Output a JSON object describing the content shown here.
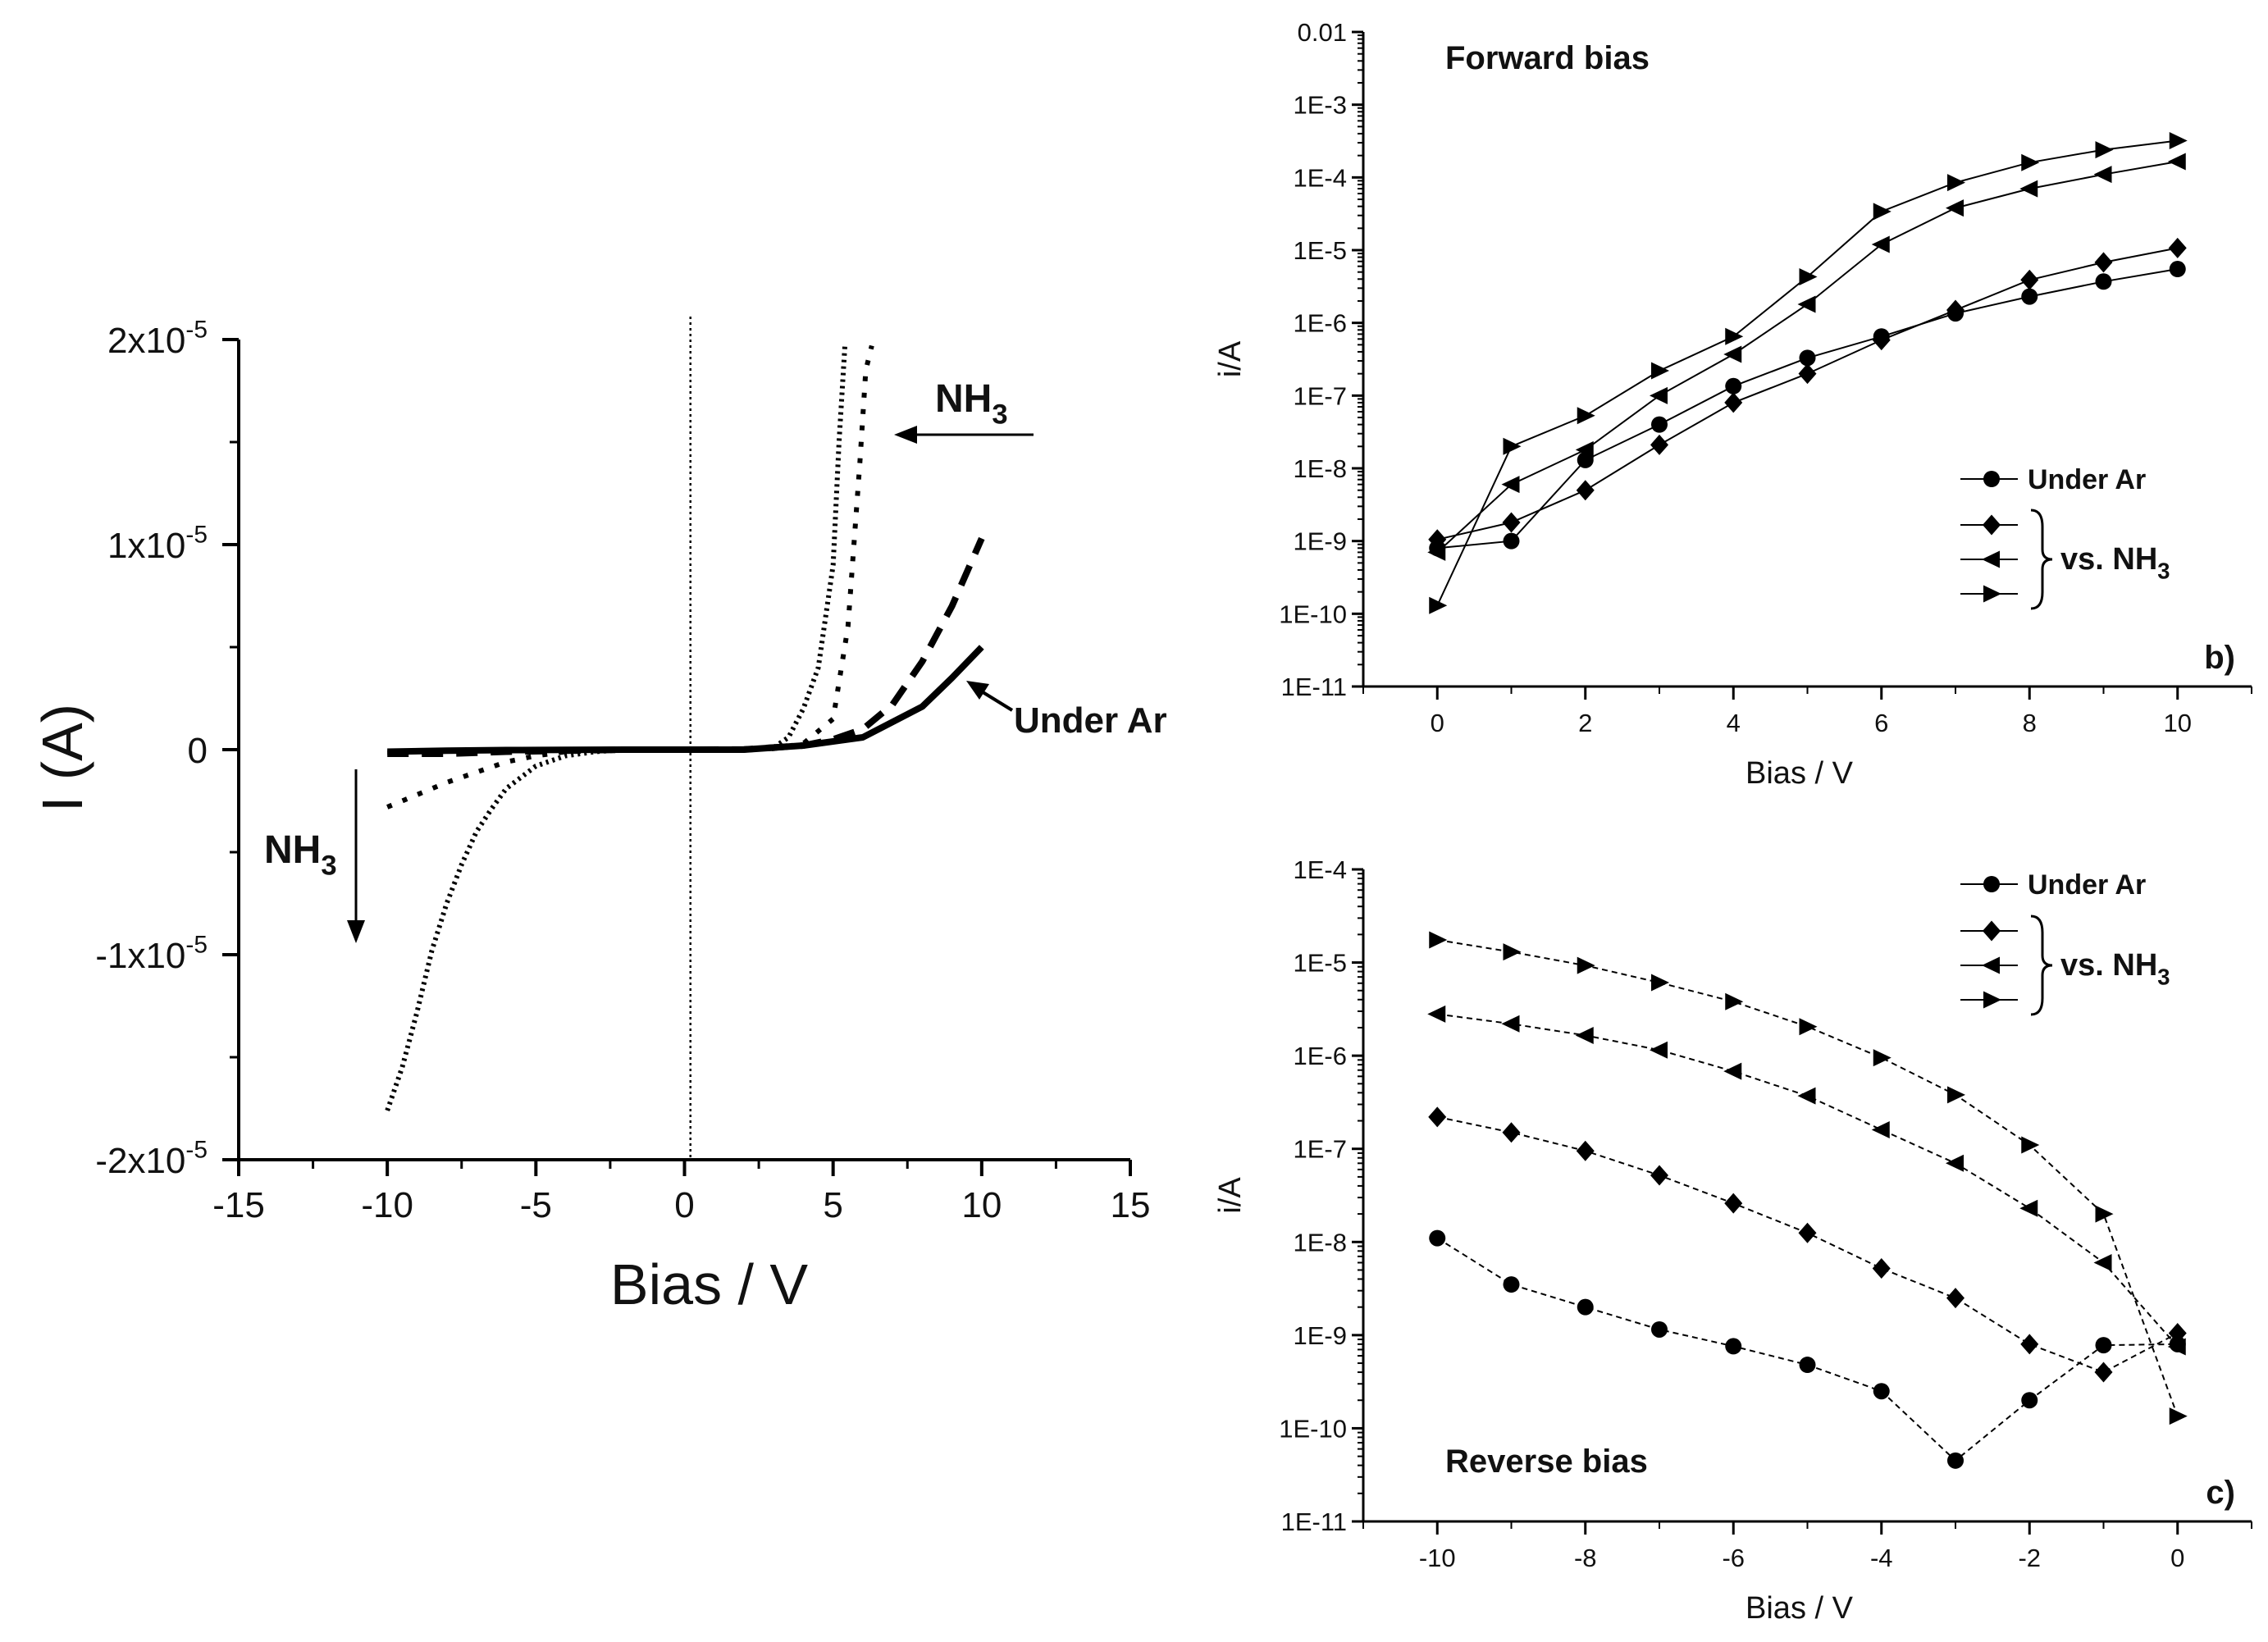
{
  "chart_data": [
    {
      "type": "line",
      "panel": "a",
      "xlabel": "Bias / V",
      "ylabel": "I (A)",
      "xlim": [
        -15,
        15
      ],
      "ylim": [
        -2e-05,
        2e-05
      ],
      "x_ticks": [
        -15,
        -10,
        -5,
        0,
        5,
        10,
        15
      ],
      "x_tick_labels": [
        "-15",
        "-10",
        "-5",
        "0",
        "5",
        "10",
        "15"
      ],
      "y_ticks": [
        {
          "value": 2e-05,
          "mant": "2x10",
          "exp": "-5"
        },
        {
          "value": 1e-05,
          "mant": "1x10",
          "exp": "-5"
        },
        {
          "value": 0,
          "mant": "0",
          "exp": ""
        },
        {
          "value": -1e-05,
          "mant": "-1x10",
          "exp": "-5"
        },
        {
          "value": -2e-05,
          "mant": "-2x10",
          "exp": "-5"
        }
      ],
      "zero_line_x": 0.2,
      "series": [
        {
          "name": "Under Ar",
          "style": "solid",
          "x": [
            -10,
            -8,
            -6,
            -4,
            -2,
            0,
            2,
            4,
            6,
            8,
            9,
            10
          ],
          "y": [
            -1e-07,
            -5e-08,
            -2e-08,
            -1e-08,
            0,
            0,
            0,
            2e-07,
            6e-07,
            2.1e-06,
            3.5e-06,
            5e-06
          ]
        },
        {
          "name": "NH3 dashed",
          "style": "dash-thick",
          "x": [
            -10,
            -8,
            -6,
            -4,
            -2,
            0,
            2,
            4,
            5,
            6,
            7,
            8,
            9,
            10
          ],
          "y": [
            -2e-07,
            -2e-07,
            -1e-07,
            -5e-08,
            0,
            0,
            1e-08,
            2e-07,
            5e-07,
            1e-06,
            2.2e-06,
            4.3e-06,
            7e-06,
            1.03e-05
          ]
        },
        {
          "name": "NH3 dotted small",
          "style": "dot-medium",
          "x": [
            -10,
            -9,
            -8,
            -7,
            -6,
            -5,
            -4,
            -3,
            -2,
            -1,
            0,
            2,
            3,
            4,
            5,
            5.5,
            5.9,
            6.1,
            6.3
          ],
          "y": [
            -2.8e-06,
            -2.2e-06,
            -1.6e-06,
            -1.1e-06,
            -6e-07,
            -3e-07,
            -1e-07,
            -5e-08,
            0,
            0,
            0,
            0,
            5e-08,
            3e-07,
            1.5e-06,
            6e-06,
            1.4e-05,
            1.85e-05,
            1.97e-05
          ]
        },
        {
          "name": "NH3 dotted large",
          "style": "dot-fine",
          "x": [
            -10,
            -9.5,
            -9,
            -8.5,
            -8,
            -7.5,
            -7,
            -6.5,
            -6,
            -5,
            -4,
            -3,
            -2,
            0,
            2,
            3,
            3.5,
            4,
            4.5,
            5,
            5.2,
            5.4
          ],
          "y": [
            -1.76e-05,
            -1.55e-05,
            -1.28e-05,
            -9.8e-06,
            -7.5e-06,
            -5.6e-06,
            -4e-06,
            -2.9e-06,
            -1.9e-06,
            -8e-07,
            -3e-07,
            -1e-07,
            0,
            0,
            0,
            1e-07,
            6e-07,
            2e-06,
            4e-06,
            9e-06,
            1.5e-05,
            1.98e-05
          ]
        }
      ],
      "annotations": {
        "nh3_top": {
          "main": "NH",
          "sub": "3"
        },
        "nh3_left": {
          "main": "NH",
          "sub": "3"
        },
        "under_ar": "Under Ar"
      }
    },
    {
      "type": "line",
      "panel": "b",
      "panel_label": "b)",
      "title": "Forward bias",
      "xlabel": "Bias / V",
      "ylabel": "i/A",
      "xlim": [
        -1,
        11
      ],
      "ylim_log10": [
        -11,
        -2
      ],
      "x_ticks": [
        0,
        2,
        4,
        6,
        8,
        10
      ],
      "x_tick_labels": [
        "0",
        "2",
        "4",
        "6",
        "8",
        "10"
      ],
      "y_tick_labels": [
        "0.01",
        "1E-3",
        "1E-4",
        "1E-5",
        "1E-6",
        "1E-7",
        "1E-8",
        "1E-9",
        "1E-10",
        "1E-11"
      ],
      "y_tick_values_log10": [
        -2,
        -3,
        -4,
        -5,
        -6,
        -7,
        -8,
        -9,
        -10,
        -11
      ],
      "series": [
        {
          "name": "Under Ar",
          "marker": "circle",
          "x": [
            0,
            1,
            2,
            3,
            4,
            5,
            6,
            7,
            8,
            9,
            10
          ],
          "y": [
            8e-10,
            1e-09,
            1.3e-08,
            4e-08,
            1.35e-07,
            3.3e-07,
            6.5e-07,
            1.35e-06,
            2.3e-06,
            3.7e-06,
            5.5e-06
          ]
        },
        {
          "name": "NH3 diamond",
          "marker": "diamond",
          "x": [
            0,
            1,
            2,
            3,
            4,
            5,
            6,
            7,
            8,
            9,
            10
          ],
          "y": [
            1.05e-09,
            1.8e-09,
            5e-09,
            2.1e-08,
            8e-08,
            2e-07,
            5.8e-07,
            1.5e-06,
            3.9e-06,
            6.8e-06,
            1.07e-05
          ]
        },
        {
          "name": "NH3 left triangle",
          "marker": "triangle-left",
          "x": [
            0,
            1,
            2,
            3,
            4,
            5,
            6,
            7,
            8,
            9,
            10
          ],
          "y": [
            7e-10,
            6e-09,
            1.8e-08,
            1e-07,
            3.7e-07,
            1.8e-06,
            1.2e-05,
            3.8e-05,
            7e-05,
            0.00011,
            0.000165
          ]
        },
        {
          "name": "NH3 right triangle",
          "marker": "triangle-right",
          "x": [
            0,
            1,
            2,
            3,
            4,
            5,
            6,
            7,
            8,
            9,
            10
          ],
          "y": [
            1.3e-10,
            2e-08,
            5.3e-08,
            2.2e-07,
            6.5e-07,
            4.3e-06,
            3.4e-05,
            8.5e-05,
            0.00016,
            0.00024,
            0.00032
          ]
        }
      ],
      "legend": {
        "under_ar": "Under Ar",
        "vs_nh3": {
          "main": "vs. NH",
          "sub": "3"
        }
      }
    },
    {
      "type": "line",
      "panel": "c",
      "panel_label": "c)",
      "title": "Reverse bias",
      "xlabel": "Bias / V",
      "ylabel": "i/A",
      "xlim": [
        -11,
        1
      ],
      "ylim_log10": [
        -11,
        -4
      ],
      "x_ticks": [
        -10,
        -8,
        -6,
        -4,
        -2,
        0
      ],
      "x_tick_labels": [
        "-10",
        "-8",
        "-6",
        "-4",
        "-2",
        "0"
      ],
      "y_tick_labels": [
        "1E-4",
        "1E-5",
        "1E-6",
        "1E-7",
        "1E-8",
        "1E-9",
        "1E-10",
        "1E-11"
      ],
      "y_tick_values_log10": [
        -4,
        -5,
        -6,
        -7,
        -8,
        -9,
        -10,
        -11
      ],
      "series": [
        {
          "name": "Under Ar",
          "marker": "circle",
          "x": [
            -10,
            -9,
            -8,
            -7,
            -6,
            -5,
            -4,
            -3,
            -2,
            -1,
            0
          ],
          "y": [
            1.1e-08,
            3.5e-09,
            2e-09,
            1.15e-09,
            7.6e-10,
            4.8e-10,
            2.5e-10,
            4.5e-11,
            2e-10,
            7.8e-10,
            8e-10
          ]
        },
        {
          "name": "NH3 diamond",
          "marker": "diamond",
          "x": [
            -10,
            -9,
            -8,
            -7,
            -6,
            -5,
            -4,
            -3,
            -2,
            -1,
            0
          ],
          "y": [
            2.2e-07,
            1.5e-07,
            9.5e-08,
            5.2e-08,
            2.6e-08,
            1.25e-08,
            5.2e-09,
            2.5e-09,
            8e-10,
            4e-10,
            1.05e-09
          ]
        },
        {
          "name": "NH3 left triangle",
          "marker": "triangle-left",
          "x": [
            -10,
            -9,
            -8,
            -7,
            -6,
            -5,
            -4,
            -3,
            -2,
            -1,
            0
          ],
          "y": [
            2.8e-06,
            2.2e-06,
            1.65e-06,
            1.15e-06,
            6.8e-07,
            3.7e-07,
            1.6e-07,
            7e-08,
            2.3e-08,
            6e-09,
            7.5e-10
          ]
        },
        {
          "name": "NH3 right triangle",
          "marker": "triangle-right",
          "x": [
            -10,
            -9,
            -8,
            -7,
            -6,
            -5,
            -4,
            -3,
            -2,
            -1,
            0
          ],
          "y": [
            1.75e-05,
            1.3e-05,
            9.3e-06,
            6.1e-06,
            3.8e-06,
            2.05e-06,
            9.5e-07,
            3.8e-07,
            1.1e-07,
            2e-08,
            1.35e-10
          ]
        }
      ],
      "legend": {
        "under_ar": "Under Ar",
        "vs_nh3": {
          "main": "vs. NH",
          "sub": "3"
        }
      }
    }
  ]
}
